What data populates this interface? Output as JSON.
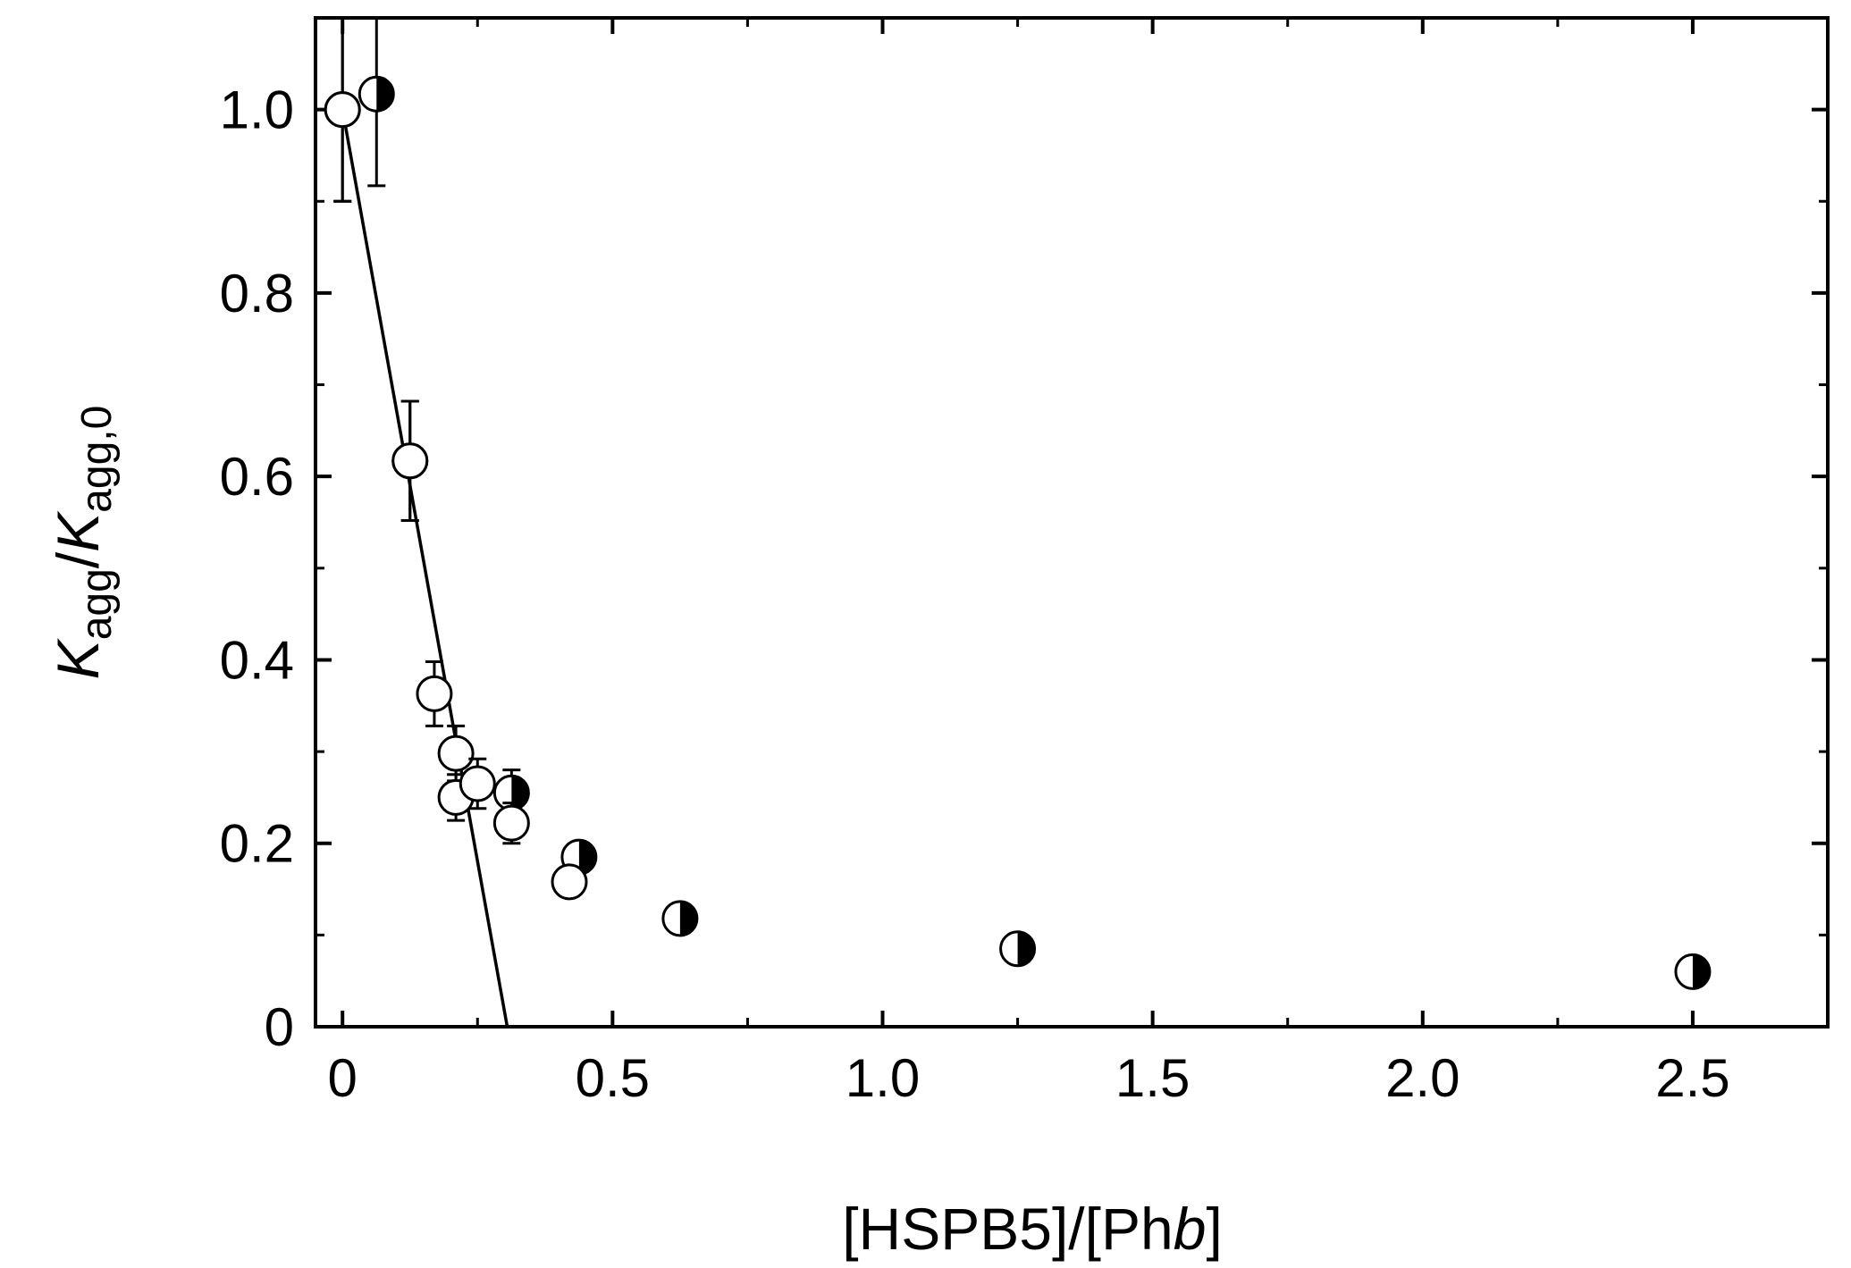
{
  "chart_data": {
    "type": "scatter",
    "xlabel": {
      "prefix": "[HSPB5]/[Ph",
      "italic": "b",
      "suffix": "]"
    },
    "ylabel": {
      "k1": "K",
      "sub1": "agg",
      "slash": "/",
      "k2": "K",
      "sub2": "agg,0"
    },
    "xlim": [
      -0.05,
      2.75
    ],
    "ylim": [
      0,
      1.1
    ],
    "x_ticks": [
      0,
      0.5,
      1.0,
      1.5,
      2.0,
      2.5
    ],
    "x_tick_labels": [
      "0",
      "0.5",
      "1.0",
      "1.5",
      "2.0",
      "2.5"
    ],
    "y_ticks": [
      0,
      0.2,
      0.4,
      0.6,
      0.8,
      1.0
    ],
    "y_tick_labels": [
      "0",
      "0.2",
      "0.4",
      "0.6",
      "0.8",
      "1.0"
    ],
    "grid": false,
    "series": [
      {
        "marker": "half-filled-right",
        "points": [
          {
            "x": 0.0,
            "y": 1.0,
            "err": 0.1
          },
          {
            "x": 0.063,
            "y": 1.017,
            "err": 0.1
          },
          {
            "x": 0.125,
            "y": 0.617,
            "err": 0.065
          },
          {
            "x": 0.313,
            "y": 0.255,
            "err": 0.025
          },
          {
            "x": 0.438,
            "y": 0.185,
            "err": 0.015
          },
          {
            "x": 0.625,
            "y": 0.118,
            "err": 0.01
          },
          {
            "x": 1.25,
            "y": 0.085,
            "err": 0.01
          },
          {
            "x": 2.5,
            "y": 0.06,
            "err": 0.01
          }
        ]
      },
      {
        "marker": "open-circle",
        "points": [
          {
            "x": 0.0,
            "y": 1.0,
            "err": 0.1
          },
          {
            "x": 0.125,
            "y": 0.617,
            "err": 0.065
          },
          {
            "x": 0.17,
            "y": 0.363,
            "err": 0.035
          },
          {
            "x": 0.21,
            "y": 0.298,
            "err": 0.03
          },
          {
            "x": 0.21,
            "y": 0.25,
            "err": 0.025
          },
          {
            "x": 0.25,
            "y": 0.265,
            "err": 0.027
          },
          {
            "x": 0.313,
            "y": 0.222,
            "err": 0.022
          },
          {
            "x": 0.42,
            "y": 0.158,
            "err": 0.016
          }
        ]
      }
    ],
    "fit_line": {
      "x": [
        0.0,
        0.305
      ],
      "y": [
        1.0,
        0.0
      ]
    },
    "colors": {
      "axis": "#000000",
      "marker_fill": "#000000",
      "marker_open": "#ffffff"
    }
  }
}
